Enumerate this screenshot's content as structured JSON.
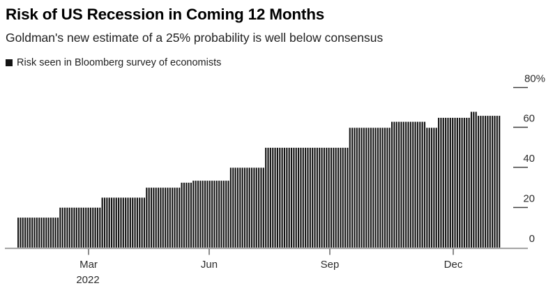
{
  "header": {
    "title": "Risk of US Recession in Coming 12 Months",
    "subtitle": "Goldman's new estimate of a 25% probability is well below consensus"
  },
  "legend": {
    "swatch_color": "#141414",
    "label": "Risk seen in Bloomberg survey of economists"
  },
  "chart_data": {
    "type": "bar",
    "title": "Risk of US Recession in Coming 12 Months",
    "subtitle": "Goldman's new estimate of a 25% probability is well below consensus",
    "series_name": "Risk seen in Bloomberg survey of economists",
    "bar_color": "#141414",
    "grid": false,
    "legend_position": "top-left",
    "y_axis_side": "right",
    "ylim": [
      0,
      80
    ],
    "y_ticks": [
      {
        "value": 0,
        "label": "0"
      },
      {
        "value": 20,
        "label": "20"
      },
      {
        "value": 40,
        "label": "40"
      },
      {
        "value": 60,
        "label": "60"
      },
      {
        "value": 80,
        "label": "80%"
      }
    ],
    "x_ticks": [
      {
        "date": "2022-03-01",
        "label": "Mar"
      },
      {
        "date": "2022-06-01",
        "label": "Jun"
      },
      {
        "date": "2022-09-01",
        "label": "Sep"
      },
      {
        "date": "2022-12-01",
        "label": "Dec"
      }
    ],
    "year_label": "2022",
    "x_range": {
      "start": "2022-01-06",
      "end": "2023-01-06"
    },
    "segments": [
      {
        "start": "2022-01-06",
        "value": 15
      },
      {
        "start": "2022-02-06",
        "value": 20
      },
      {
        "start": "2022-03-10",
        "value": 25
      },
      {
        "start": "2022-04-12",
        "value": 30
      },
      {
        "start": "2022-05-09",
        "value": 32.5
      },
      {
        "start": "2022-05-17",
        "value": 33.5
      },
      {
        "start": "2022-06-15",
        "value": 40
      },
      {
        "start": "2022-07-12",
        "value": 50
      },
      {
        "start": "2022-09-12",
        "value": 60
      },
      {
        "start": "2022-10-14",
        "value": 63
      },
      {
        "start": "2022-11-09",
        "value": 60
      },
      {
        "start": "2022-11-18",
        "value": 65
      },
      {
        "start": "2022-12-13",
        "value": 68
      },
      {
        "start": "2022-12-19",
        "value": 66
      }
    ],
    "end_date": "2023-01-06"
  }
}
